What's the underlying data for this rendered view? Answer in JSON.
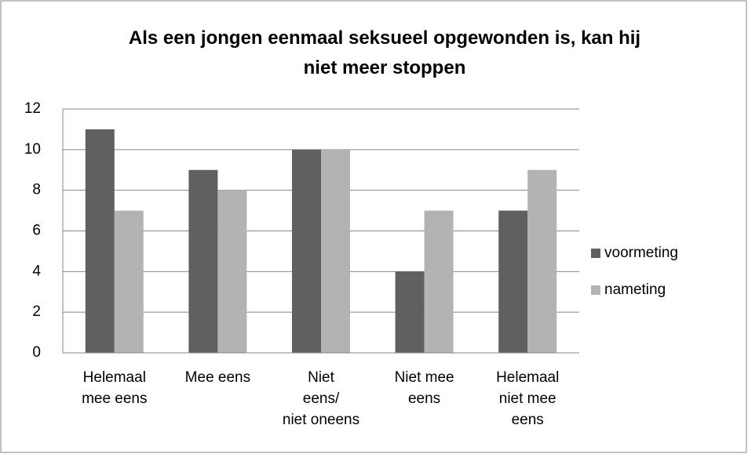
{
  "chart_data": {
    "type": "bar",
    "title": "Als een jongen eenmaal seksueel opgewonden is, kan hij niet meer stoppen",
    "categories": [
      "Helemaal mee eens",
      "Mee eens",
      "Niet eens/niet oneens",
      "Niet mee eens",
      "Helemaal niet mee eens"
    ],
    "series": [
      {
        "name": "voormeting",
        "color": "#606060",
        "values": [
          11,
          9,
          10,
          4,
          7
        ]
      },
      {
        "name": "nameting",
        "color": "#b3b3b3",
        "values": [
          7,
          8,
          10,
          7,
          9
        ]
      }
    ],
    "ylim": [
      0,
      12
    ],
    "yticks": [
      0,
      2,
      4,
      6,
      8,
      10,
      12
    ],
    "grid": true,
    "legend": "right"
  }
}
